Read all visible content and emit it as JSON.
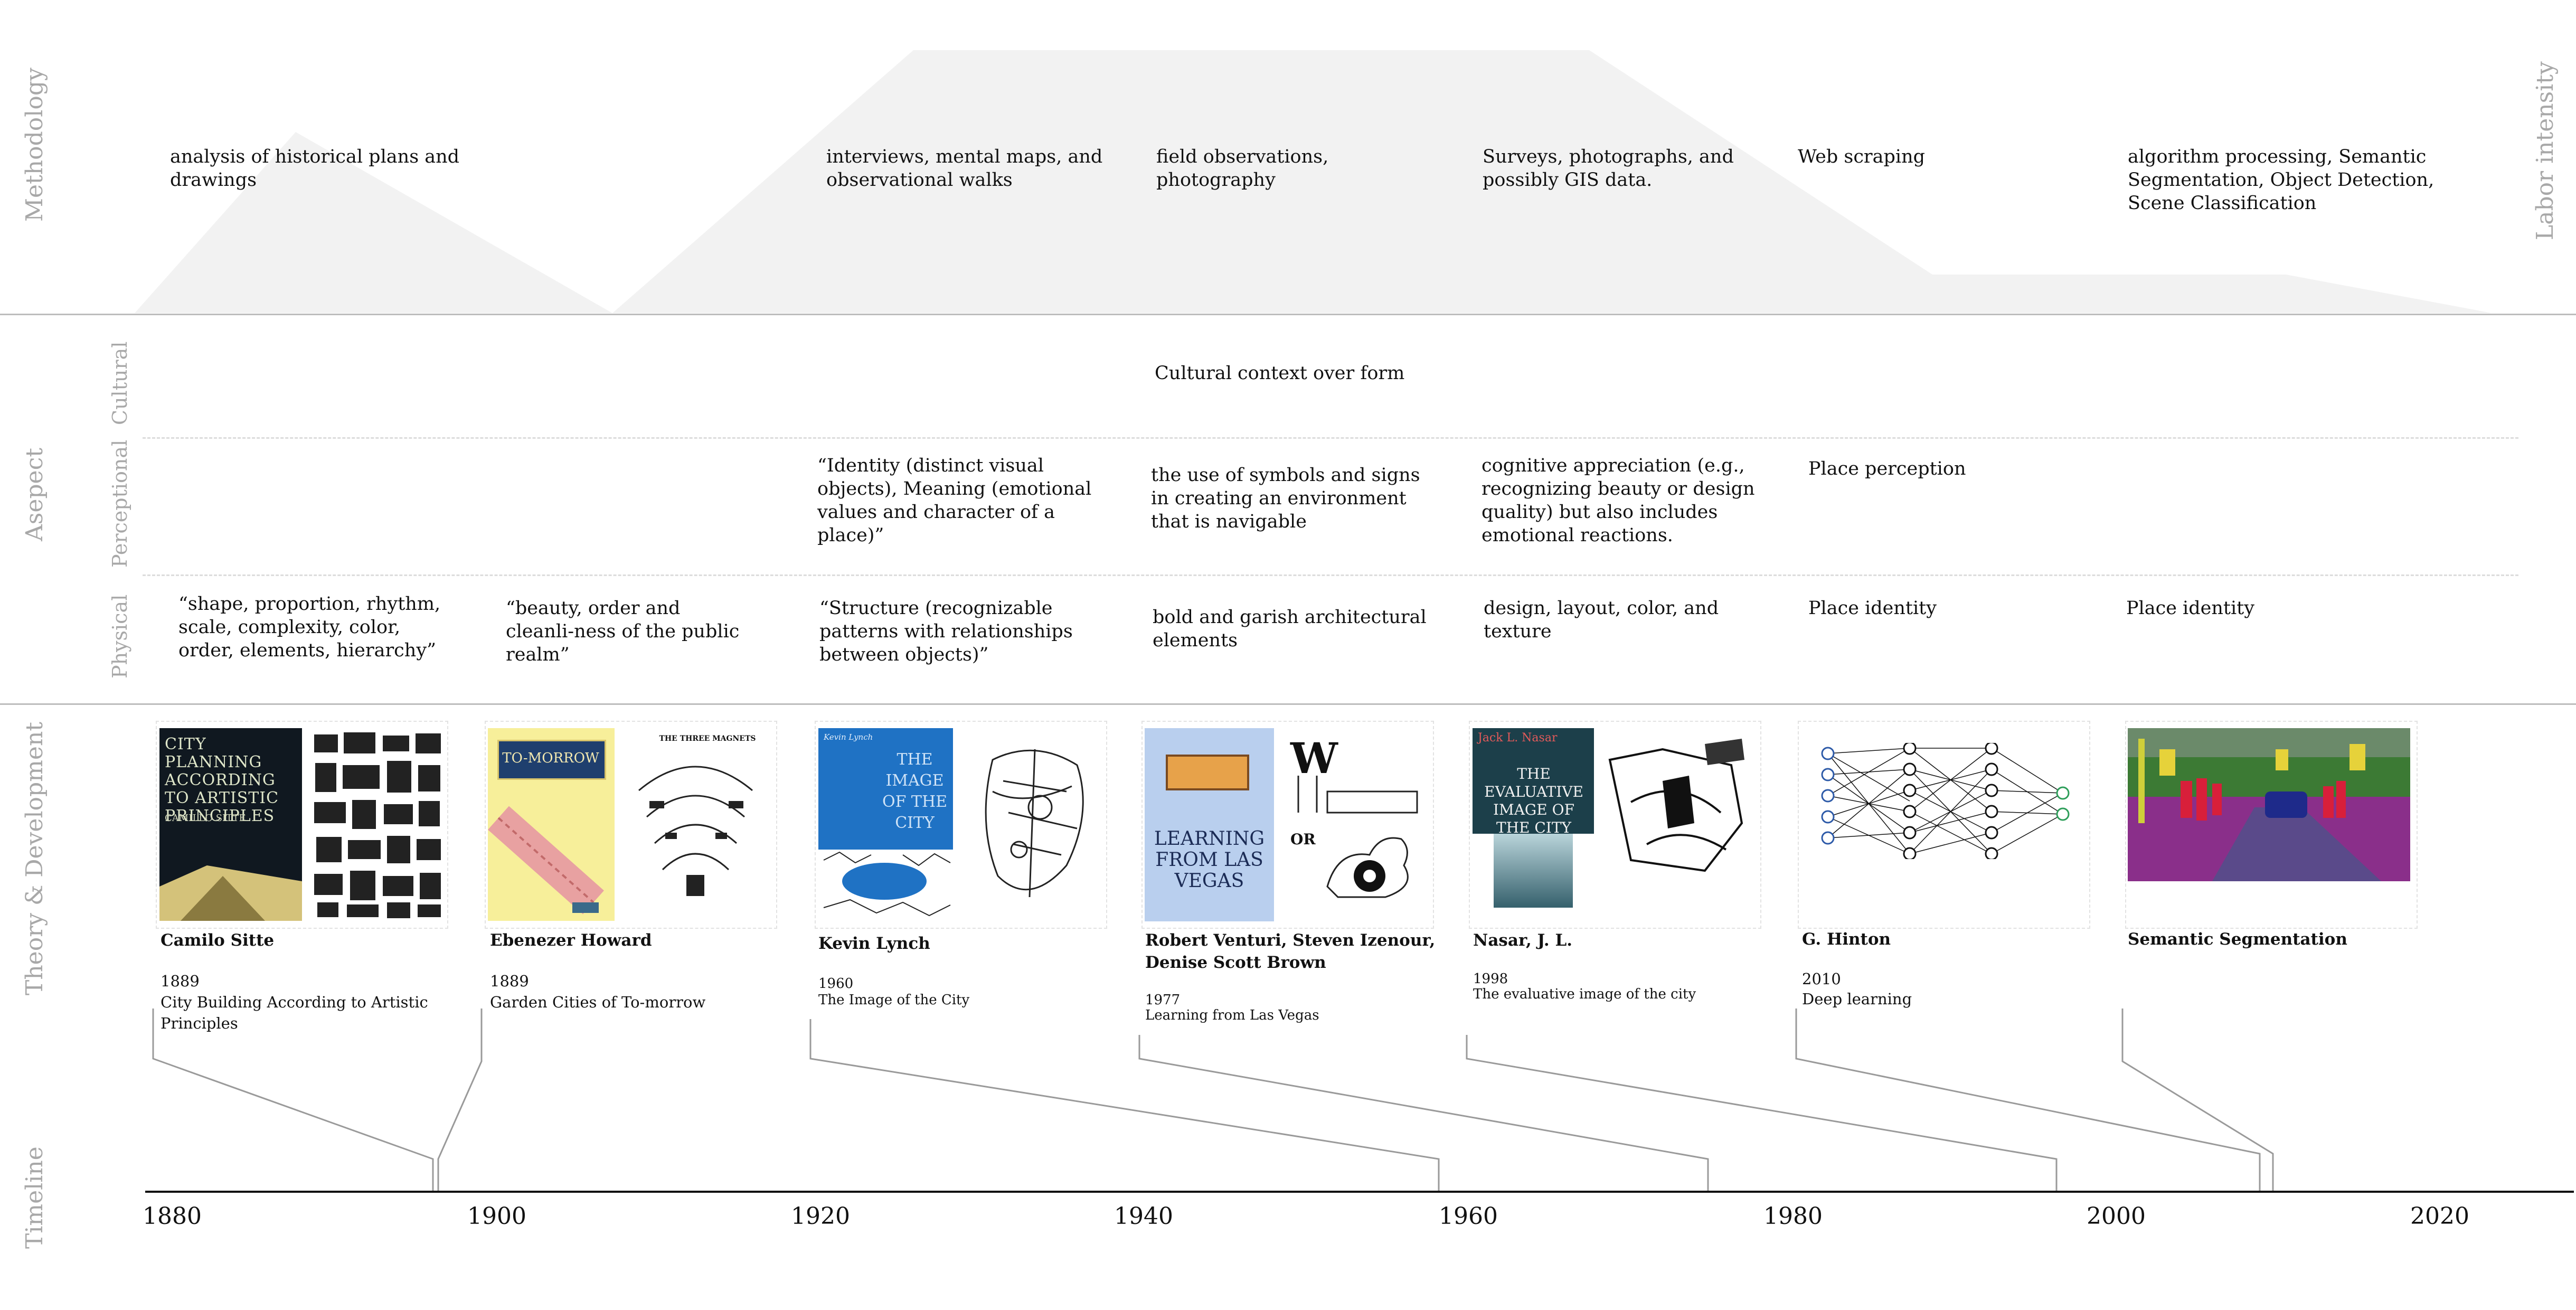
{
  "rows": {
    "methodology": "Methodology",
    "aspect": "Asepect",
    "theory": "Theory & Development",
    "timeline": "Timeline",
    "labor": "Labor intensity",
    "cultural": "Cultural",
    "perceptional": "Perceptional",
    "physical": "Physical"
  },
  "methodology": [
    "analysis of historical plans and drawings",
    "interviews, mental maps, and observational walks",
    "field observations, photography",
    "Surveys, photographs, and possibly GIS data.",
    "Web scraping",
    "algorithm processing, Semantic Segmentation, Object Detection, Scene Classification"
  ],
  "aspect": {
    "cultural": [
      "Cultural context over form"
    ],
    "perceptional": [
      "“Identity (distinct visual objects), Meaning (emotional values and character of a place)”",
      "the use of symbols and signs in creating an environment that is navigable",
      "cognitive appreciation (e.g., recognizing beauty or design quality) but also includes emotional reactions.",
      "Place perception"
    ],
    "physical": [
      "“shape, proportion, rhythm, scale, complexity, color, order, elements, hierarchy”",
      "“beauty, order and cleanli-ness of the public realm”",
      "“Structure (recognizable patterns with relationships between objects)”",
      "bold and garish architectural elements",
      "design, layout, color, and texture",
      "Place identity",
      "Place identity"
    ]
  },
  "theories": [
    {
      "author": "Camilo Sitte",
      "year": "1889",
      "work": "City Building According to Artistic Principles",
      "cover_title": "CITY PLANNING ACCORDING TO ARTISTIC PRINCIPLES",
      "cover_author": "CAMILLO SITTE"
    },
    {
      "author": "Ebenezer Howard",
      "year": "1889",
      "work": "Garden Cities of To-morrow",
      "cover_title": "TO-MORROW",
      "cover_sub": "THE THREE MAGNETS"
    },
    {
      "author": "Kevin Lynch",
      "year": "1960",
      "work": "The Image of the City",
      "cover_title": "THE IMAGE OF THE CITY",
      "cover_author": "Kevin Lynch"
    },
    {
      "author": "Robert Venturi, Steven Izenour, Denise Scott Brown",
      "year": "1977",
      "work": "Learning from Las Vegas",
      "cover_title": "LEARNING FROM LAS VEGAS",
      "cover_sub": "W",
      "cover_or": "OR"
    },
    {
      "author": "Nasar, J. L.",
      "year": "1998",
      "work": "The evaluative image of the city",
      "cover_title": "THE EVALUATIVE IMAGE OF THE CITY",
      "cover_author": "Jack L. Nasar"
    },
    {
      "author": "G. Hinton",
      "year": "2010",
      "work": "Deep learning"
    },
    {
      "author": "Semantic Segmentation"
    }
  ],
  "timeline": {
    "ticks": [
      "1880",
      "1900",
      "1920",
      "1940",
      "1960",
      "1980",
      "2000",
      "2020"
    ]
  },
  "colors": {
    "area_fill": "#f2f2f2",
    "rule": "#bdbdbd",
    "label_gray": "#a8a8a8",
    "sitte_cover": "#101820",
    "howard_cover": "#f7ef9a",
    "lynch_cover": "#1f72c4",
    "venturi_cover": "#b9cfee",
    "nasar_cover": "#1c3f4a"
  }
}
